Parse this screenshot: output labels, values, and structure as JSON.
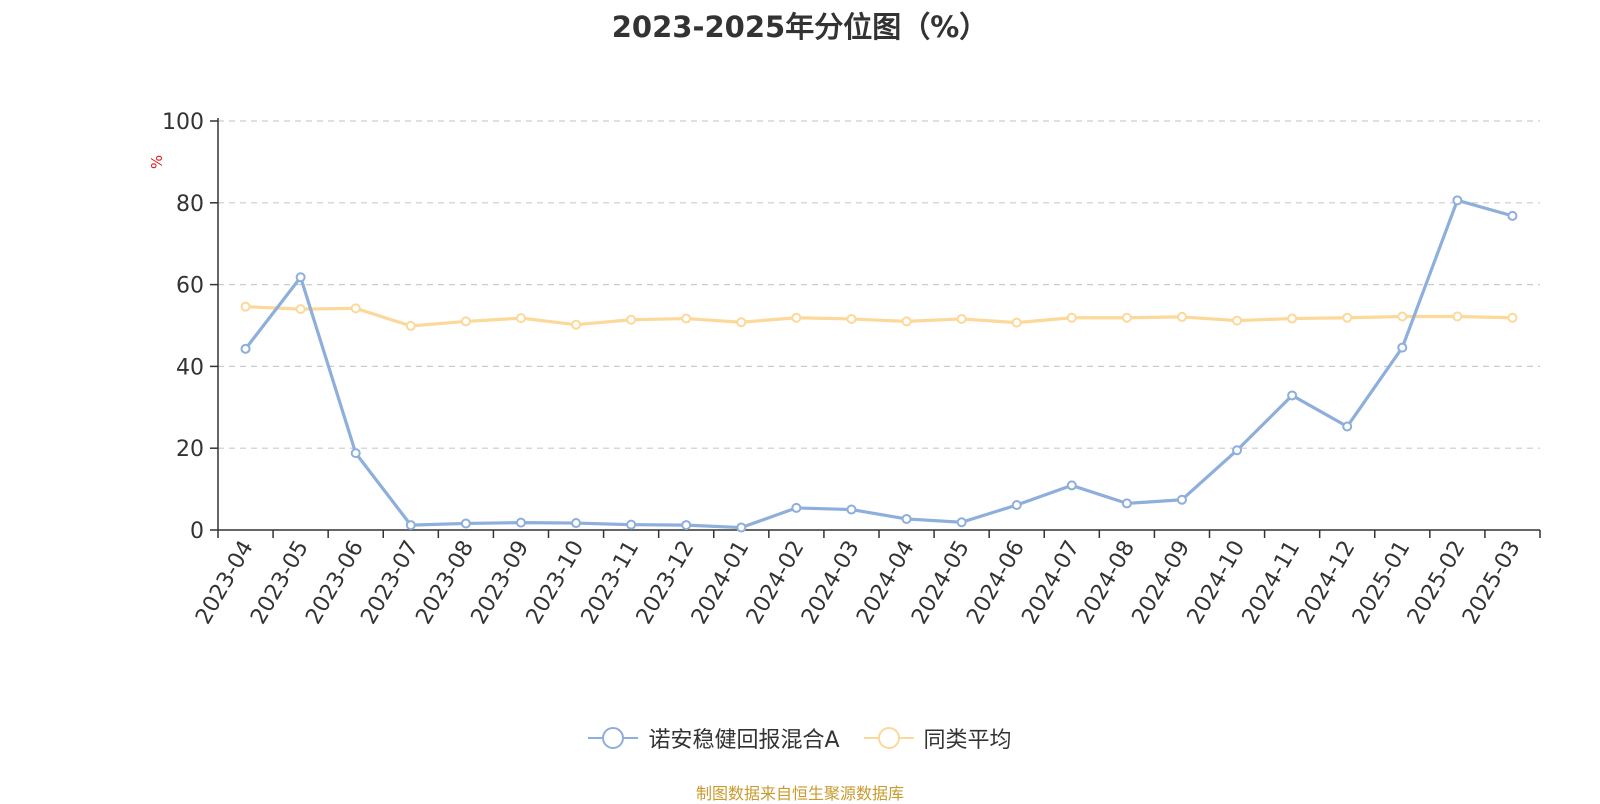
{
  "chart_data": {
    "type": "line",
    "title": "2023-2025年分位图（%）",
    "ylabel": "%",
    "xlabel": "",
    "ylim": [
      0,
      100
    ],
    "yticks": [
      0,
      20,
      40,
      60,
      80,
      100
    ],
    "grid": "horizontal dashed",
    "legend_position": "bottom",
    "categories": [
      "2023-04",
      "2023-05",
      "2023-06",
      "2023-07",
      "2023-08",
      "2023-09",
      "2023-10",
      "2023-11",
      "2023-12",
      "2024-01",
      "2024-02",
      "2024-03",
      "2024-04",
      "2024-05",
      "2024-06",
      "2024-07",
      "2024-08",
      "2024-09",
      "2024-10",
      "2024-11",
      "2024-12",
      "2025-01",
      "2025-02",
      "2025-03"
    ],
    "series": [
      {
        "name": "诺安稳健回报混合A",
        "color": "#8eaedb",
        "values": [
          44.3,
          61.8,
          18.8,
          1.2,
          1.6,
          1.8,
          1.7,
          1.3,
          1.2,
          0.6,
          5.4,
          5.0,
          2.7,
          1.9,
          6.1,
          10.9,
          6.5,
          7.4,
          19.5,
          32.9,
          25.3,
          44.6,
          80.6,
          76.8
        ]
      },
      {
        "name": "同类平均",
        "color": "#fcd89a",
        "values": [
          54.6,
          54.0,
          54.2,
          49.9,
          51.0,
          51.8,
          50.2,
          51.4,
          51.7,
          50.8,
          51.9,
          51.6,
          51.0,
          51.6,
          50.7,
          51.9,
          51.9,
          52.1,
          51.2,
          51.7,
          51.9,
          52.2,
          52.2,
          51.9
        ]
      }
    ]
  },
  "source_note": "制图数据来自恒生聚源数据库"
}
